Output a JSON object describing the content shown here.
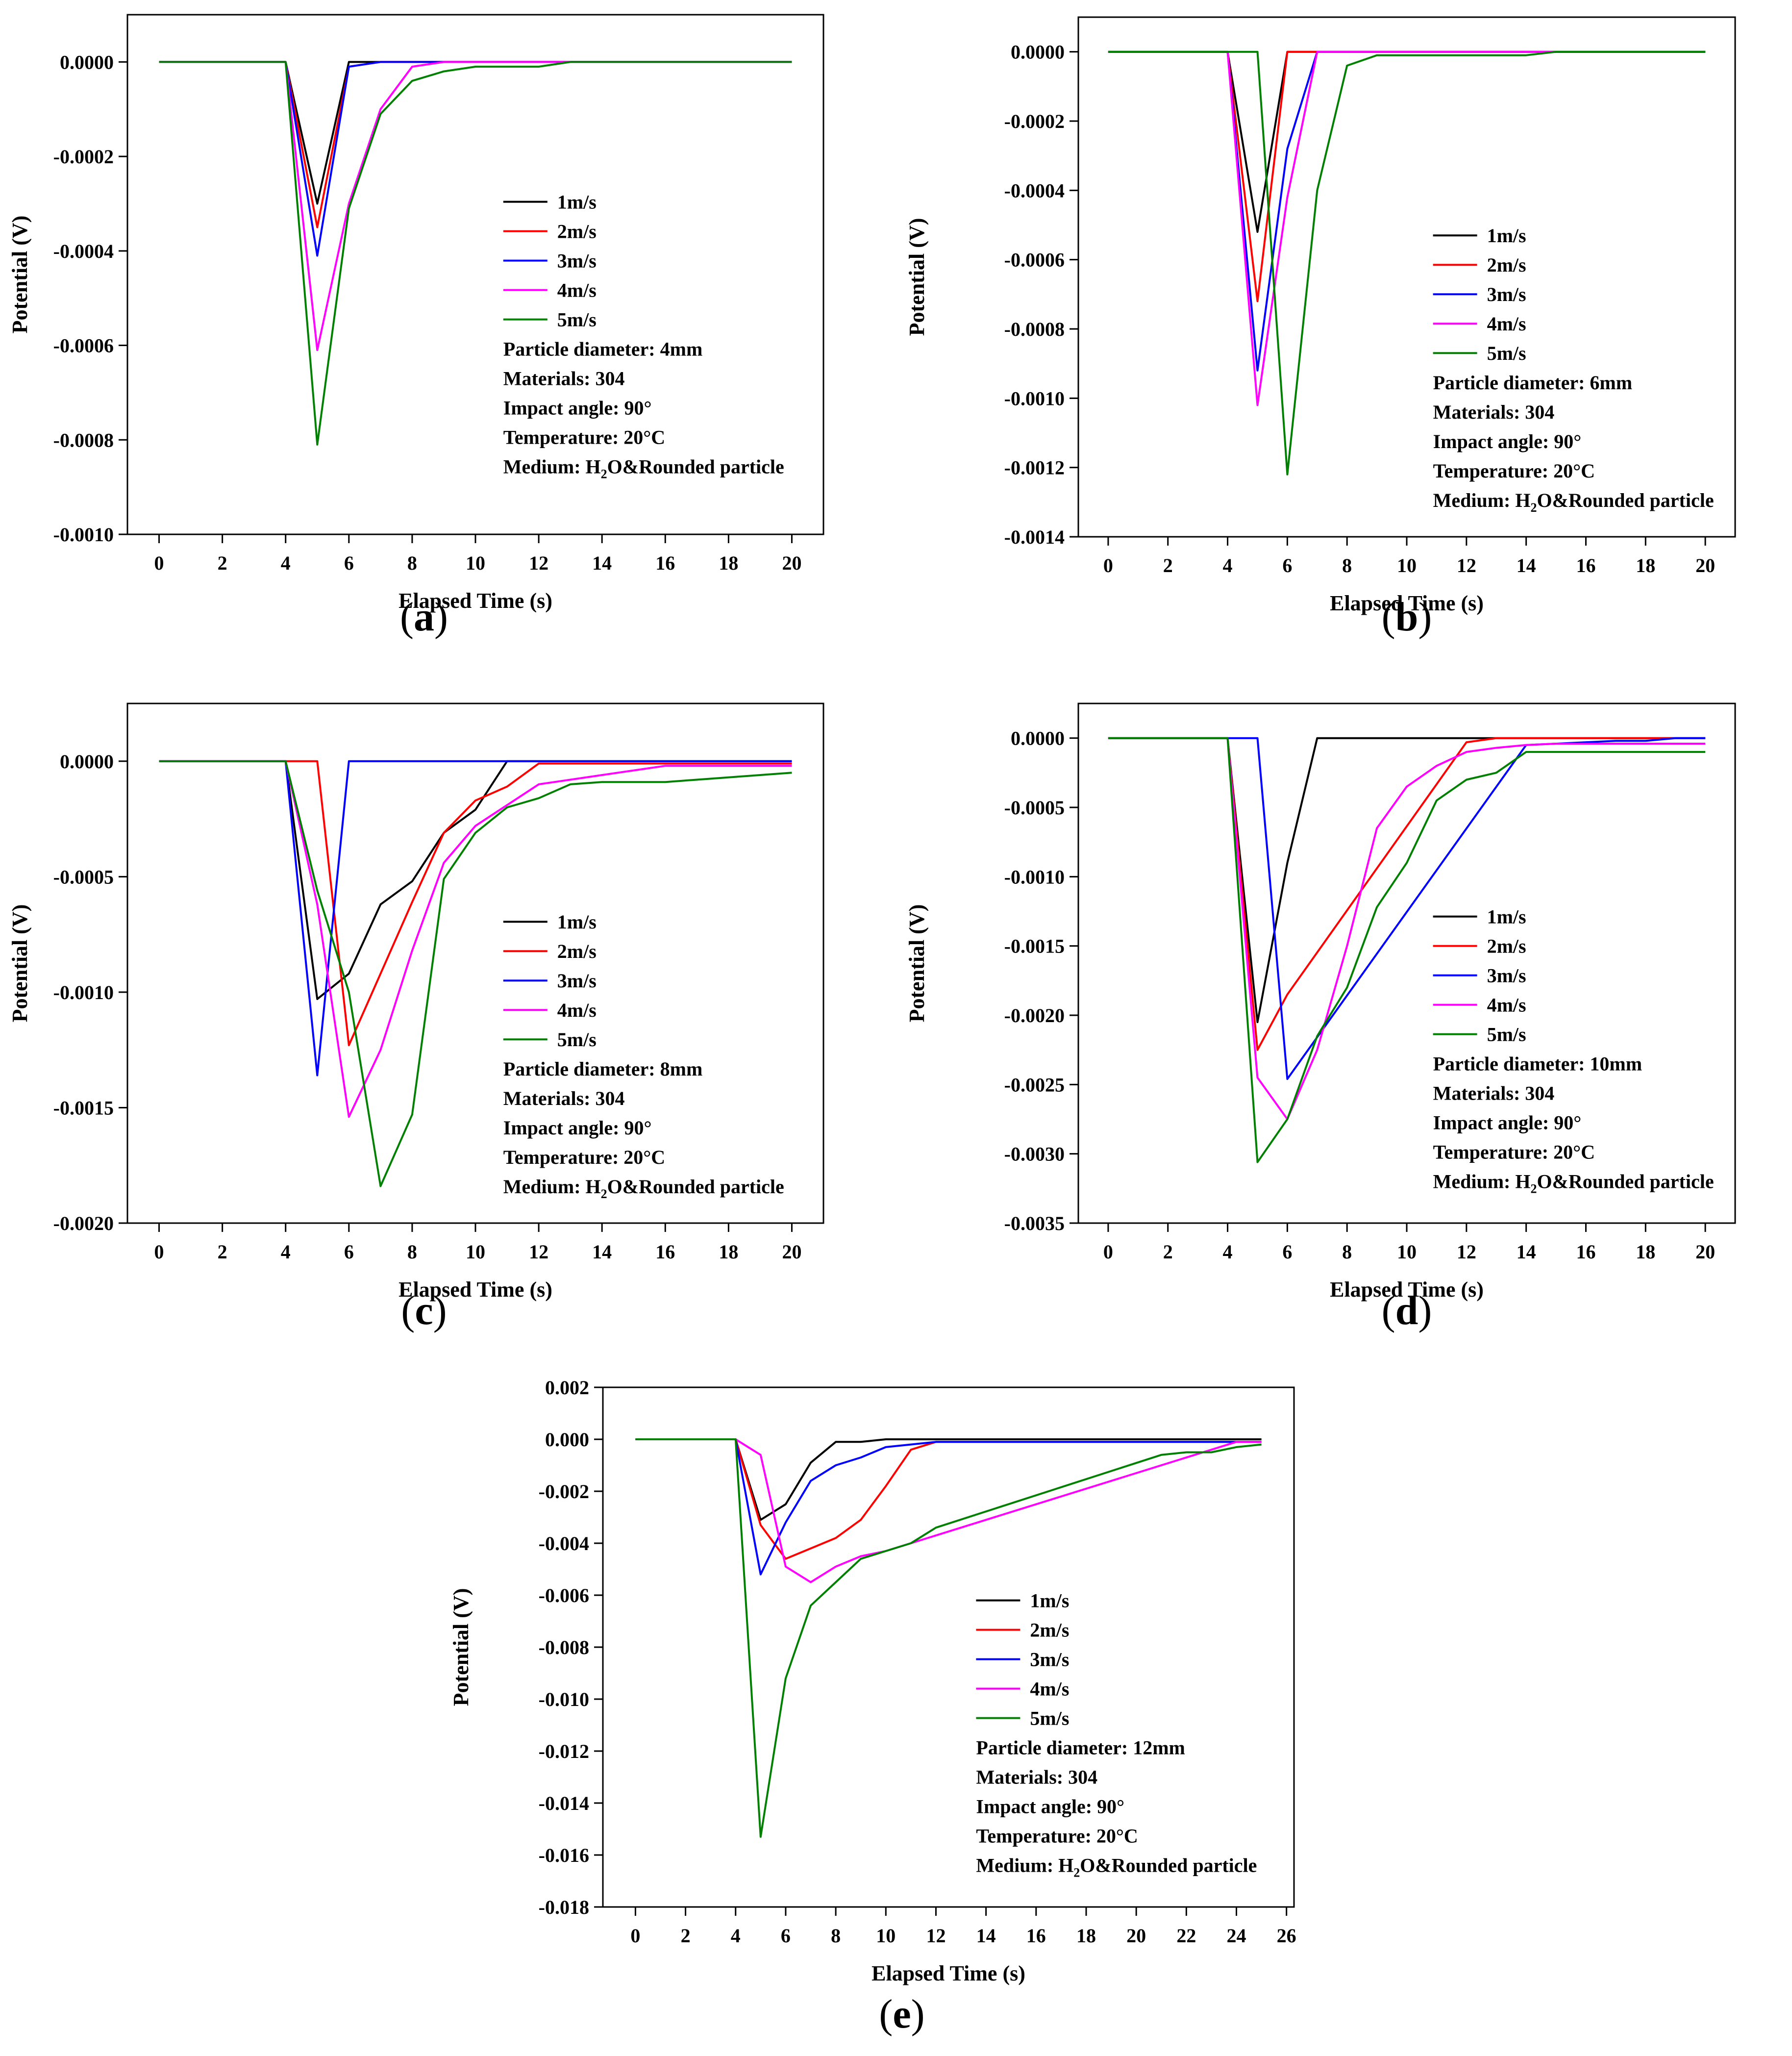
{
  "chart_data": [
    {
      "type": "line",
      "label": "a",
      "title": "",
      "xlabel": "Elapsed Time (s)",
      "ylabel": "Potential (V)",
      "xlim": [
        -1,
        21
      ],
      "ylim": [
        -0.001,
        0.0001
      ],
      "xticks": [
        0,
        2,
        4,
        6,
        8,
        10,
        12,
        14,
        16,
        18,
        20
      ],
      "yticks": [
        -0.001,
        -0.0008,
        -0.0006,
        -0.0004,
        -0.0002,
        0
      ],
      "ytick_labels": [
        "-0.0010",
        "-0.0008",
        "-0.0006",
        "-0.0004",
        "-0.0002",
        "0.0000"
      ],
      "xtick_labels": [
        "0",
        "2",
        "4",
        "6",
        "8",
        "10",
        "12",
        "14",
        "16",
        "18",
        "20"
      ],
      "legend_position": "center-right",
      "series": [
        {
          "name": "1m/s",
          "color": "#000000",
          "x": [
            0,
            4,
            5,
            6,
            7,
            8,
            9,
            20
          ],
          "y": [
            0,
            0,
            -0.0003,
            0,
            0,
            0,
            0,
            0
          ]
        },
        {
          "name": "2m/s",
          "color": "#ff0000",
          "x": [
            0,
            4,
            5,
            6,
            7,
            20
          ],
          "y": [
            0,
            0,
            -0.00035,
            -1e-05,
            0,
            0
          ]
        },
        {
          "name": "3m/s",
          "color": "#0000ff",
          "x": [
            0,
            4,
            5,
            6,
            7,
            20
          ],
          "y": [
            0,
            0,
            -0.00041,
            -1e-05,
            0,
            0
          ]
        },
        {
          "name": "4m/s",
          "color": "#ff00ff",
          "x": [
            0,
            4,
            5,
            6,
            7,
            8,
            9,
            20
          ],
          "y": [
            0,
            0,
            -0.00061,
            -0.0003,
            -0.0001,
            -1e-05,
            0,
            0
          ]
        },
        {
          "name": "5m/s",
          "color": "#008000",
          "x": [
            0,
            4,
            5,
            6,
            7,
            8,
            9,
            10,
            11,
            12,
            13,
            14,
            15,
            20
          ],
          "y": [
            0,
            0,
            -0.00081,
            -0.00031,
            -0.00011,
            -4e-05,
            -2e-05,
            -1e-05,
            -1e-05,
            -1e-05,
            0,
            0,
            0,
            0
          ]
        }
      ],
      "annotations": [
        "Particle diameter: 4mm",
        "Materials:  304",
        "Impact angle:  90°",
        "Temperature:  20°C",
        "Medium:  H2O&Rounded particle"
      ]
    },
    {
      "type": "line",
      "label": "b",
      "title": "",
      "xlabel": "Elapsed Time (s)",
      "ylabel": "Potential (V)",
      "xlim": [
        -1,
        21
      ],
      "ylim": [
        -0.0014,
        0.0001
      ],
      "xticks": [
        0,
        2,
        4,
        6,
        8,
        10,
        12,
        14,
        16,
        18,
        20
      ],
      "yticks": [
        -0.0014,
        -0.0012,
        -0.001,
        -0.0008,
        -0.0006,
        -0.0004,
        -0.0002,
        0
      ],
      "ytick_labels": [
        "-0.0014",
        "-0.0012",
        "-0.0010",
        "-0.0008",
        "-0.0006",
        "-0.0004",
        "-0.0002",
        "0.0000"
      ],
      "xtick_labels": [
        "0",
        "2",
        "4",
        "6",
        "8",
        "10",
        "12",
        "14",
        "16",
        "18",
        "20"
      ],
      "legend_position": "center-right",
      "series": [
        {
          "name": "1m/s",
          "color": "#000000",
          "x": [
            0,
            4,
            5,
            6,
            20
          ],
          "y": [
            0,
            0,
            -0.00052,
            0,
            0
          ]
        },
        {
          "name": "2m/s",
          "color": "#ff0000",
          "x": [
            0,
            4,
            5,
            6,
            20
          ],
          "y": [
            0,
            0,
            -0.00072,
            0,
            0
          ]
        },
        {
          "name": "3m/s",
          "color": "#0000ff",
          "x": [
            0,
            4,
            5,
            6,
            7,
            20
          ],
          "y": [
            0,
            0,
            -0.00092,
            -0.00028,
            0,
            0
          ]
        },
        {
          "name": "4m/s",
          "color": "#ff00ff",
          "x": [
            0,
            4,
            5,
            6,
            7,
            20
          ],
          "y": [
            0,
            0,
            -0.00102,
            -0.00042,
            0,
            0
          ]
        },
        {
          "name": "5m/s",
          "color": "#008000",
          "x": [
            0,
            5,
            6,
            7,
            8,
            9,
            14,
            15,
            20
          ],
          "y": [
            0,
            0,
            -0.00122,
            -0.0004,
            -4e-05,
            -1e-05,
            -1e-05,
            0,
            0
          ]
        }
      ],
      "annotations": [
        "Particle diameter:  6mm",
        "Materials:  304",
        "Impact angle:  90°",
        "Temperature:  20°C",
        "Medium:  H2O&Rounded particle"
      ]
    },
    {
      "type": "line",
      "label": "c",
      "title": "",
      "xlabel": "Elapsed Time (s)",
      "ylabel": "Potential (V)",
      "xlim": [
        -1,
        21
      ],
      "ylim": [
        -0.002,
        0.00025
      ],
      "xticks": [
        0,
        2,
        4,
        6,
        8,
        10,
        12,
        14,
        16,
        18,
        20
      ],
      "yticks": [
        -0.002,
        -0.0015,
        -0.001,
        -0.0005,
        0
      ],
      "ytick_labels": [
        "-0.0020",
        "-0.0015",
        "-0.0010",
        "-0.0005",
        "0.0000"
      ],
      "xtick_labels": [
        "0",
        "2",
        "4",
        "6",
        "8",
        "10",
        "12",
        "14",
        "16",
        "18",
        "20"
      ],
      "legend_position": "center-right",
      "series": [
        {
          "name": "1m/s",
          "color": "#000000",
          "x": [
            0,
            4,
            5,
            6,
            7,
            8,
            9,
            10,
            11,
            20
          ],
          "y": [
            0,
            0,
            -0.00103,
            -0.00092,
            -0.00062,
            -0.00052,
            -0.00031,
            -0.00021,
            0,
            0
          ]
        },
        {
          "name": "2m/s",
          "color": "#ff0000",
          "x": [
            0,
            5,
            6,
            7,
            8,
            9,
            10,
            11,
            12,
            20
          ],
          "y": [
            0,
            0,
            -0.00123,
            -0.00092,
            -0.00061,
            -0.00031,
            -0.00017,
            -0.00011,
            -1e-05,
            -1e-05
          ]
        },
        {
          "name": "3m/s",
          "color": "#0000ff",
          "x": [
            0,
            4,
            5,
            6,
            20
          ],
          "y": [
            0,
            0,
            -0.00136,
            0,
            0
          ]
        },
        {
          "name": "4m/s",
          "color": "#ff00ff",
          "x": [
            0,
            4,
            5,
            6,
            7,
            8,
            9,
            10,
            11,
            12,
            13,
            14,
            15,
            16,
            17,
            18,
            19,
            20
          ],
          "y": [
            0,
            0,
            -0.00062,
            -0.00154,
            -0.00125,
            -0.00082,
            -0.00044,
            -0.00028,
            -0.00019,
            -0.0001,
            -8e-05,
            -6e-05,
            -4e-05,
            -2e-05,
            -2e-05,
            -2e-05,
            -2e-05,
            -2e-05
          ]
        },
        {
          "name": "5m/s",
          "color": "#008000",
          "x": [
            0,
            4,
            5,
            6,
            7,
            8,
            9,
            10,
            11,
            12,
            13,
            14,
            15,
            16,
            17,
            18,
            19,
            20
          ],
          "y": [
            0,
            0,
            -0.00056,
            -0.001,
            -0.00184,
            -0.00153,
            -0.00051,
            -0.00031,
            -0.0002,
            -0.00016,
            -0.0001,
            -9e-05,
            -9e-05,
            -9e-05,
            -8e-05,
            -7e-05,
            -6e-05,
            -5e-05
          ]
        }
      ],
      "annotations": [
        "Particle diameter:  8mm",
        "Materials:  304",
        "Impact angle:  90°",
        "Temperature:  20°C",
        "Medium:  H2O&Rounded particle"
      ]
    },
    {
      "type": "line",
      "label": "d",
      "title": "",
      "xlabel": "Elapsed Time (s)",
      "ylabel": "Potential (V)",
      "xlim": [
        -1,
        21
      ],
      "ylim": [
        -0.0035,
        0.00025
      ],
      "xticks": [
        0,
        2,
        4,
        6,
        8,
        10,
        12,
        14,
        16,
        18,
        20
      ],
      "yticks": [
        -0.0035,
        -0.003,
        -0.0025,
        -0.002,
        -0.0015,
        -0.001,
        -0.0005,
        0
      ],
      "ytick_labels": [
        "-0.0035",
        "-0.0030",
        "-0.0025",
        "-0.0020",
        "-0.0015",
        "-0.0010",
        "-0.0005",
        "0.0000"
      ],
      "xtick_labels": [
        "0",
        "2",
        "4",
        "6",
        "8",
        "10",
        "12",
        "14",
        "16",
        "18",
        "20"
      ],
      "legend_position": "center-right",
      "series": [
        {
          "name": "1m/s",
          "color": "#000000",
          "x": [
            0,
            4,
            5,
            6,
            7,
            20
          ],
          "y": [
            0,
            0,
            -0.00205,
            -0.0009,
            0,
            0
          ]
        },
        {
          "name": "2m/s",
          "color": "#ff0000",
          "x": [
            0,
            4,
            5,
            6,
            12,
            13,
            20
          ],
          "y": [
            0,
            0,
            -0.00225,
            -0.00185,
            -3e-05,
            0,
            0
          ]
        },
        {
          "name": "3m/s",
          "color": "#0000ff",
          "x": [
            0,
            5,
            6,
            14,
            15,
            16,
            17,
            18,
            19,
            20
          ],
          "y": [
            0,
            0,
            -0.00246,
            -5e-05,
            -4e-05,
            -3e-05,
            -2e-05,
            -2e-05,
            0,
            0
          ]
        },
        {
          "name": "4m/s",
          "color": "#ff00ff",
          "x": [
            0,
            4,
            5,
            6,
            7,
            8,
            9,
            10,
            11,
            12,
            13,
            14,
            15,
            16,
            17,
            18,
            19,
            20
          ],
          "y": [
            0,
            0,
            -0.00245,
            -0.00275,
            -0.00225,
            -0.0015,
            -0.00065,
            -0.00035,
            -0.0002,
            -0.0001,
            -7e-05,
            -5e-05,
            -4e-05,
            -4e-05,
            -4e-05,
            -4e-05,
            -4e-05,
            -4e-05
          ]
        },
        {
          "name": "5m/s",
          "color": "#008000",
          "x": [
            0,
            4,
            5,
            6,
            7,
            8,
            9,
            10,
            11,
            12,
            13,
            14,
            15,
            16,
            17,
            18,
            19,
            20
          ],
          "y": [
            0,
            0,
            -0.00306,
            -0.00275,
            -0.00215,
            -0.0018,
            -0.00122,
            -0.0009,
            -0.00045,
            -0.0003,
            -0.00025,
            -0.0001,
            -0.0001,
            -0.0001,
            -0.0001,
            -0.0001,
            -0.0001,
            -0.0001
          ]
        }
      ],
      "annotations": [
        "Particle diameter:  10mm",
        "Materials:  304",
        "Impact angle:  90°",
        "Temperature:  20°C",
        "Medium:  H2O&Rounded particle"
      ]
    },
    {
      "type": "line",
      "label": "e",
      "title": "",
      "xlabel": "Elapsed Time (s)",
      "ylabel": "Potential (V)",
      "xlim": [
        -1.3,
        26.3
      ],
      "ylim": [
        -0.018,
        0.002
      ],
      "xticks": [
        0,
        2,
        4,
        6,
        8,
        10,
        12,
        14,
        16,
        18,
        20,
        22,
        24,
        26
      ],
      "yticks": [
        -0.018,
        -0.016,
        -0.014,
        -0.012,
        -0.01,
        -0.008,
        -0.006,
        -0.004,
        -0.002,
        0,
        0.002
      ],
      "ytick_labels": [
        "-0.018",
        "-0.016",
        "-0.014",
        "-0.012",
        "-0.010",
        "-0.008",
        "-0.006",
        "-0.004",
        "-0.002",
        "0.000",
        "0.002"
      ],
      "xtick_labels": [
        "0",
        "2",
        "4",
        "6",
        "8",
        "10",
        "12",
        "14",
        "16",
        "18",
        "20",
        "22",
        "24",
        "26"
      ],
      "legend_position": "center-right",
      "series": [
        {
          "name": "1m/s",
          "color": "#000000",
          "x": [
            0,
            4,
            5,
            6,
            7,
            8,
            9,
            10,
            11,
            20,
            25
          ],
          "y": [
            0,
            0,
            -0.0031,
            -0.0025,
            -0.0009,
            -0.0001,
            -0.0001,
            0,
            0,
            0,
            0
          ]
        },
        {
          "name": "2m/s",
          "color": "#ff0000",
          "x": [
            0,
            4,
            5,
            6,
            7,
            8,
            9,
            10,
            11,
            12,
            20,
            25
          ],
          "y": [
            0,
            0,
            -0.0033,
            -0.0046,
            -0.0042,
            -0.0038,
            -0.0031,
            -0.0018,
            -0.0004,
            -0.0001,
            -0.0001,
            -0.0001
          ]
        },
        {
          "name": "3m/s",
          "color": "#0000ff",
          "x": [
            0,
            4,
            5,
            6,
            7,
            8,
            9,
            10,
            11,
            12,
            20,
            25
          ],
          "y": [
            0,
            0,
            -0.0052,
            -0.0032,
            -0.0016,
            -0.001,
            -0.0007,
            -0.0003,
            -0.0002,
            -0.0001,
            -0.0001,
            -0.0001
          ]
        },
        {
          "name": "4m/s",
          "color": "#ff00ff",
          "x": [
            0,
            4,
            5,
            6,
            7,
            8,
            9,
            10,
            11,
            24,
            25
          ],
          "y": [
            0,
            0,
            -0.0006,
            -0.0049,
            -0.0055,
            -0.0049,
            -0.0045,
            -0.0043,
            -0.004,
            -0.0001,
            -0.0001
          ]
        },
        {
          "name": "5m/s",
          "color": "#008000",
          "x": [
            0,
            4,
            5,
            6,
            7,
            8,
            9,
            10,
            11,
            12,
            21,
            22,
            23,
            24,
            25
          ],
          "y": [
            0,
            0,
            -0.0153,
            -0.0092,
            -0.0064,
            -0.0055,
            -0.0046,
            -0.0043,
            -0.004,
            -0.0034,
            -0.0006,
            -0.0005,
            -0.0005,
            -0.0003,
            -0.0002
          ]
        }
      ],
      "annotations": [
        "Particle diameter:  12mm",
        "Materials:  304",
        "Impact angle:  90°",
        "Temperature:  20°C",
        "Medium:  H2O&Rounded particle"
      ]
    }
  ]
}
